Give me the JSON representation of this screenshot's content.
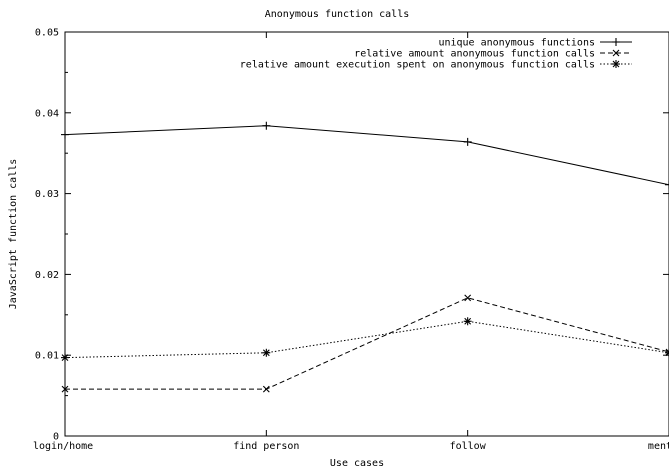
{
  "chart_data": {
    "type": "line",
    "title": "Anonymous function calls",
    "xlabel": "Use cases",
    "ylabel": "JavaScript function calls",
    "categories": [
      "login/home",
      "find person",
      "follow",
      "mention"
    ],
    "ylim": [
      0,
      0.05
    ],
    "yticks": [
      0,
      0.01,
      0.02,
      0.03,
      0.04,
      0.05
    ],
    "ytick_labels": [
      "0",
      "0.01",
      "0.02",
      "0.03",
      "0.04",
      "0.05"
    ],
    "grid": false,
    "legend_position": "top-right",
    "series": [
      {
        "name": "unique anonymous functions",
        "values": [
          0.0373,
          0.0384,
          0.0364,
          0.0311
        ],
        "line": "solid",
        "marker": "plus"
      },
      {
        "name": "relative amount anonymous function calls",
        "values": [
          0.0058,
          0.0058,
          0.0171,
          0.0104
        ],
        "line": "dashed",
        "marker": "cross"
      },
      {
        "name": "relative amount execution spent on anonymous function calls",
        "values": [
          0.0097,
          0.0103,
          0.0142,
          0.0103
        ],
        "line": "dotted",
        "marker": "star"
      }
    ],
    "colors": {
      "line": "#000000",
      "background": "#ffffff"
    }
  }
}
